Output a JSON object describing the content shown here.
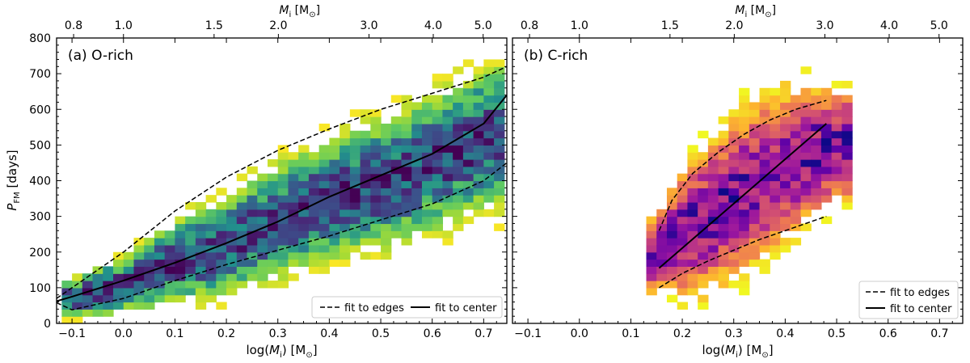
{
  "chart_data": [
    {
      "type": "heatmap",
      "panel_label": "(a) O-rich",
      "xlabel": "log(M_i) [M_sun]",
      "xlabel_parts": {
        "pre": "log(",
        "var": "M",
        "sub": "i",
        "post": ") [M",
        "unit_sub": "⊙",
        "end": "]"
      },
      "ylabel_parts": {
        "var": "P",
        "sub": "FM",
        "post": " [days]"
      },
      "top_label_parts": {
        "var": "M",
        "sub": "i",
        "post": " [M",
        "unit_sub": "⊙",
        "end": "]"
      },
      "xlim": [
        -0.13,
        0.745
      ],
      "ylim": [
        0,
        800
      ],
      "xticks": [
        -0.1,
        0.0,
        0.1,
        0.2,
        0.3,
        0.4,
        0.5,
        0.6,
        0.7
      ],
      "yticks": [
        0,
        100,
        200,
        300,
        400,
        500,
        600,
        700,
        800
      ],
      "top_ticks": [
        0.8,
        1.0,
        1.5,
        2.0,
        3.0,
        4.0,
        5.0
      ],
      "colormap": "viridis_r",
      "density_ridge": {
        "x": [
          -0.1,
          0.0,
          0.1,
          0.2,
          0.3,
          0.4,
          0.5,
          0.6,
          0.7
        ],
        "y": [
          70,
          110,
          170,
          220,
          290,
          350,
          390,
          450,
          520
        ]
      },
      "density_band_halfwidth": {
        "x": [
          -0.1,
          0.0,
          0.1,
          0.2,
          0.3,
          0.4,
          0.5,
          0.6,
          0.7
        ],
        "y": [
          35,
          55,
          80,
          95,
          110,
          115,
          125,
          130,
          135
        ]
      },
      "series": [
        {
          "name": "upper edge fit",
          "style": "dashed",
          "x": [
            -0.13,
            -0.1,
            0.0,
            0.1,
            0.2,
            0.3,
            0.4,
            0.5,
            0.6,
            0.7,
            0.745
          ],
          "y": [
            70,
            100,
            200,
            315,
            410,
            485,
            545,
            600,
            645,
            690,
            720
          ]
        },
        {
          "name": "lower edge fit",
          "style": "dashed",
          "x": [
            -0.13,
            -0.1,
            0.0,
            0.1,
            0.2,
            0.3,
            0.4,
            0.5,
            0.6,
            0.7,
            0.745
          ],
          "y": [
            58,
            38,
            70,
            120,
            165,
            205,
            245,
            290,
            335,
            400,
            450
          ]
        },
        {
          "name": "center fit",
          "style": "solid",
          "x": [
            -0.13,
            -0.1,
            0.0,
            0.1,
            0.2,
            0.3,
            0.4,
            0.5,
            0.6,
            0.7,
            0.745
          ],
          "y": [
            62,
            75,
            120,
            170,
            225,
            285,
            355,
            415,
            475,
            560,
            640
          ]
        }
      ],
      "legend": {
        "position": "bottom-right",
        "entries": [
          {
            "label": "fit to edges",
            "style": "dashed"
          },
          {
            "label": "fit to center",
            "style": "solid"
          }
        ],
        "layout": "row"
      }
    },
    {
      "type": "heatmap",
      "panel_label": "(b) C-rich",
      "xlabel": "log(M_i) [M_sun]",
      "xlabel_parts": {
        "pre": "log(",
        "var": "M",
        "sub": "i",
        "post": ") [M",
        "unit_sub": "⊙",
        "end": "]"
      },
      "top_label_parts": {
        "var": "M",
        "sub": "i",
        "post": " [M",
        "unit_sub": "⊙",
        "end": "]"
      },
      "xlim": [
        -0.13,
        0.745
      ],
      "ylim": [
        0,
        800
      ],
      "xticks": [
        -0.1,
        0.0,
        0.1,
        0.2,
        0.3,
        0.4,
        0.5,
        0.6,
        0.7
      ],
      "yticks": [
        0,
        100,
        200,
        300,
        400,
        500,
        600,
        700,
        800
      ],
      "top_ticks": [
        0.8,
        1.0,
        1.5,
        2.0,
        3.0,
        4.0,
        5.0
      ],
      "colormap": "plasma_r",
      "density_ridge": {
        "x": [
          0.15,
          0.2,
          0.25,
          0.3,
          0.35,
          0.4,
          0.45,
          0.5
        ],
        "y": [
          190,
          250,
          300,
          350,
          400,
          440,
          480,
          500
        ]
      },
      "density_band_halfwidth": {
        "x": [
          0.15,
          0.2,
          0.25,
          0.3,
          0.35,
          0.4,
          0.45,
          0.5
        ],
        "y": [
          70,
          120,
          140,
          150,
          150,
          140,
          130,
          110
        ]
      },
      "series": [
        {
          "name": "upper edge fit",
          "style": "dashed",
          "x": [
            0.155,
            0.18,
            0.22,
            0.27,
            0.32,
            0.37,
            0.42,
            0.48
          ],
          "y": [
            260,
            345,
            420,
            480,
            530,
            570,
            600,
            625
          ]
        },
        {
          "name": "lower edge fit",
          "style": "dashed",
          "x": [
            0.155,
            0.2,
            0.25,
            0.3,
            0.35,
            0.4,
            0.45,
            0.48
          ],
          "y": [
            100,
            140,
            175,
            205,
            235,
            260,
            285,
            300
          ]
        },
        {
          "name": "center fit",
          "style": "solid",
          "x": [
            0.155,
            0.48
          ],
          "y": [
            155,
            560
          ]
        }
      ],
      "legend": {
        "position": "bottom-right",
        "entries": [
          {
            "label": "fit to edges",
            "style": "dashed"
          },
          {
            "label": "fit to center",
            "style": "solid"
          }
        ],
        "layout": "column"
      }
    }
  ]
}
